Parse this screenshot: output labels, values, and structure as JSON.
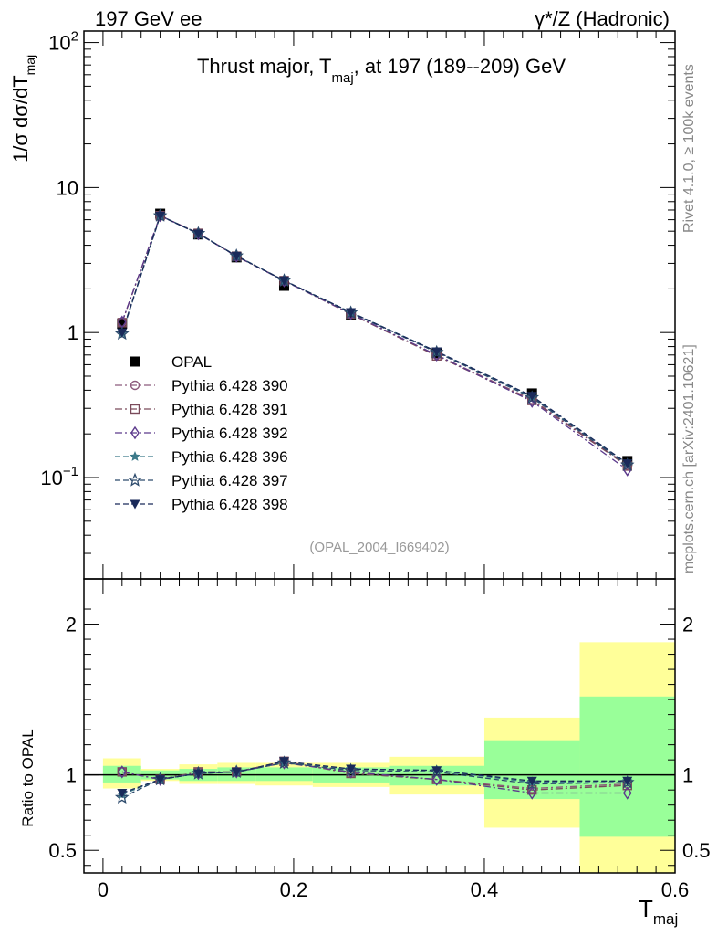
{
  "header": {
    "left": "197 GeV ee",
    "right": "γ*/Z (Hadronic)"
  },
  "side_text": {
    "rivet": "Rivet 4.1.0, ≥ 100k events",
    "mcplots": "mcplots.cern.ch [arXiv:2401.10621]"
  },
  "chart_data": [
    {
      "type": "line",
      "panel": "main",
      "title": "Thrust major, T_maj, at 197 (189--209) GeV",
      "title_parts": {
        "pre": "Thrust major, T",
        "sub": "maj",
        "post": ", at 197 (189--209) GeV"
      },
      "ylabel": "1/σ  dσ/dT_maj",
      "ylabel_parts": {
        "pre": "1/σ  dσ/dT",
        "sub": "maj"
      },
      "xlabel": "T_maj",
      "yscale": "log",
      "ylim": [
        0.02,
        120
      ],
      "xlim": [
        -0.02,
        0.6
      ],
      "grid": false,
      "legend_position": "middle-left",
      "analysis_label": "(OPAL_2004_I669402)",
      "y_ticks": [
        {
          "value": 100,
          "label": "10",
          "sup": "2"
        },
        {
          "value": 10,
          "label": "10",
          "sup": ""
        },
        {
          "value": 1,
          "label": "1",
          "sup": ""
        },
        {
          "value": 0.1,
          "label": "10",
          "sup": "−1"
        }
      ],
      "x": [
        0.02,
        0.06,
        0.1,
        0.14,
        0.19,
        0.26,
        0.35,
        0.45,
        0.55
      ],
      "x_bins": [
        [
          0.0,
          0.04
        ],
        [
          0.04,
          0.08
        ],
        [
          0.08,
          0.12
        ],
        [
          0.12,
          0.16
        ],
        [
          0.16,
          0.22
        ],
        [
          0.22,
          0.3
        ],
        [
          0.3,
          0.4
        ],
        [
          0.4,
          0.5
        ],
        [
          0.5,
          0.6
        ]
      ],
      "series": [
        {
          "name": "OPAL",
          "marker": "square",
          "color": "#000000",
          "dash": "none",
          "values": [
            1.15,
            6.6,
            4.75,
            3.3,
            2.1,
            1.33,
            0.72,
            0.38,
            0.13
          ]
        },
        {
          "name": "Pythia 6.428 390",
          "marker": "circle-open",
          "color": "#8c5a7c",
          "dash": "8,3,2,3",
          "values": [
            1.18,
            6.4,
            4.85,
            3.35,
            2.28,
            1.34,
            0.7,
            0.345,
            0.122
          ]
        },
        {
          "name": "Pythia 6.428 391",
          "marker": "square-open",
          "color": "#7a4a5a",
          "dash": "8,3,2,3",
          "values": [
            1.17,
            6.4,
            4.83,
            3.36,
            2.28,
            1.34,
            0.69,
            0.34,
            0.12
          ]
        },
        {
          "name": "Pythia 6.428 392",
          "marker": "diamond-open",
          "color": "#5c3a8c",
          "dash": "8,3,2,3",
          "values": [
            1.18,
            6.4,
            4.8,
            3.36,
            2.27,
            1.35,
            0.7,
            0.335,
            0.113
          ]
        },
        {
          "name": "Pythia 6.428 396",
          "marker": "star-filled",
          "color": "#3c7a8a",
          "dash": "6,3",
          "values": [
            0.99,
            6.4,
            4.8,
            3.38,
            2.28,
            1.38,
            0.74,
            0.36,
            0.124
          ]
        },
        {
          "name": "Pythia 6.428 397",
          "marker": "star-open",
          "color": "#2c4a6c",
          "dash": "6,3",
          "values": [
            0.98,
            6.4,
            4.82,
            3.38,
            2.28,
            1.37,
            0.73,
            0.355,
            0.122
          ]
        },
        {
          "name": "Pythia 6.428 398",
          "marker": "triangle-down",
          "color": "#1a2a5a",
          "dash": "6,3",
          "values": [
            1.0,
            6.38,
            4.8,
            3.37,
            2.28,
            1.38,
            0.74,
            0.365,
            0.125
          ]
        }
      ]
    },
    {
      "type": "line",
      "panel": "ratio",
      "ylabel": "Ratio to OPAL",
      "xlabel": "T_maj",
      "xlabel_parts": {
        "pre": "T",
        "sub": "maj"
      },
      "ylim": [
        0.35,
        2.3
      ],
      "xlim": [
        -0.02,
        0.6
      ],
      "y_ticks": [
        0.5,
        1,
        2
      ],
      "y_tick_labels": [
        "0.5",
        "1",
        "2"
      ],
      "x_ticks": [
        0,
        0.2,
        0.4,
        0.6
      ],
      "x_tick_labels": [
        "0",
        "0.2",
        "0.4",
        "0.6"
      ],
      "bands": {
        "x_bins": [
          [
            0.0,
            0.04
          ],
          [
            0.04,
            0.08
          ],
          [
            0.08,
            0.12
          ],
          [
            0.12,
            0.16
          ],
          [
            0.16,
            0.22
          ],
          [
            0.22,
            0.3
          ],
          [
            0.3,
            0.4
          ],
          [
            0.4,
            0.5
          ],
          [
            0.5,
            0.6
          ]
        ],
        "yellow": [
          [
            0.91,
            1.11
          ],
          [
            0.96,
            1.04
          ],
          [
            0.94,
            1.07
          ],
          [
            0.94,
            1.08
          ],
          [
            0.93,
            1.08
          ],
          [
            0.92,
            1.08
          ],
          [
            0.87,
            1.12
          ],
          [
            0.65,
            1.38
          ],
          [
            0.35,
            1.88
          ]
        ],
        "green": [
          [
            0.95,
            1.06
          ],
          [
            0.97,
            1.03
          ],
          [
            0.96,
            1.04
          ],
          [
            0.96,
            1.05
          ],
          [
            0.96,
            1.05
          ],
          [
            0.95,
            1.05
          ],
          [
            0.93,
            1.06
          ],
          [
            0.84,
            1.23
          ],
          [
            0.59,
            1.52
          ]
        ],
        "colors": {
          "yellow": "#ffff99",
          "green": "#99ff99"
        }
      },
      "series": [
        {
          "name": "Pythia 6.428 390",
          "values": [
            1.02,
            0.97,
            1.02,
            1.02,
            1.09,
            1.01,
            0.97,
            0.91,
            0.94
          ]
        },
        {
          "name": "Pythia 6.428 391",
          "values": [
            1.02,
            0.97,
            1.02,
            1.02,
            1.09,
            1.01,
            0.97,
            0.9,
            0.93
          ]
        },
        {
          "name": "Pythia 6.428 392",
          "values": [
            1.02,
            0.97,
            1.01,
            1.02,
            1.08,
            1.02,
            0.97,
            0.88,
            0.88
          ]
        },
        {
          "name": "Pythia 6.428 396",
          "values": [
            0.87,
            0.97,
            1.01,
            1.02,
            1.08,
            1.04,
            1.03,
            0.95,
            0.96
          ]
        },
        {
          "name": "Pythia 6.428 397",
          "values": [
            0.85,
            0.97,
            1.01,
            1.02,
            1.08,
            1.03,
            1.02,
            0.94,
            0.95
          ]
        },
        {
          "name": "Pythia 6.428 398",
          "values": [
            0.88,
            0.97,
            1.01,
            1.02,
            1.09,
            1.04,
            1.03,
            0.96,
            0.96
          ]
        }
      ]
    }
  ]
}
